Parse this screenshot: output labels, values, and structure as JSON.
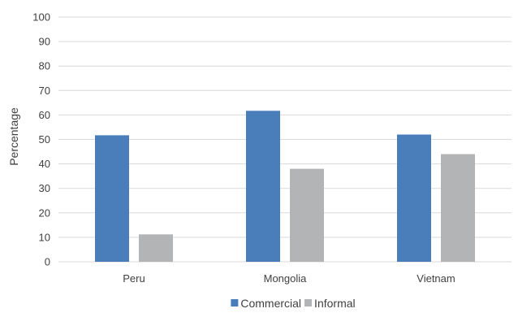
{
  "chart_data": {
    "type": "bar",
    "categories": [
      "Peru",
      "Mongolia",
      "Vietnam"
    ],
    "series": [
      {
        "name": "Commercial",
        "color": "#4a7ebb",
        "values": [
          51.7,
          61.7,
          52.0
        ]
      },
      {
        "name": "Informal",
        "color": "#b3b4b6",
        "values": [
          11.2,
          38.0,
          44.0
        ]
      }
    ],
    "title": "",
    "xlabel": "",
    "ylabel": "Percentage",
    "ylim": [
      0,
      100
    ],
    "yticks": [
      0,
      10,
      20,
      30,
      40,
      50,
      60,
      70,
      80,
      90,
      100
    ],
    "grid": true,
    "legend": "bottom"
  }
}
